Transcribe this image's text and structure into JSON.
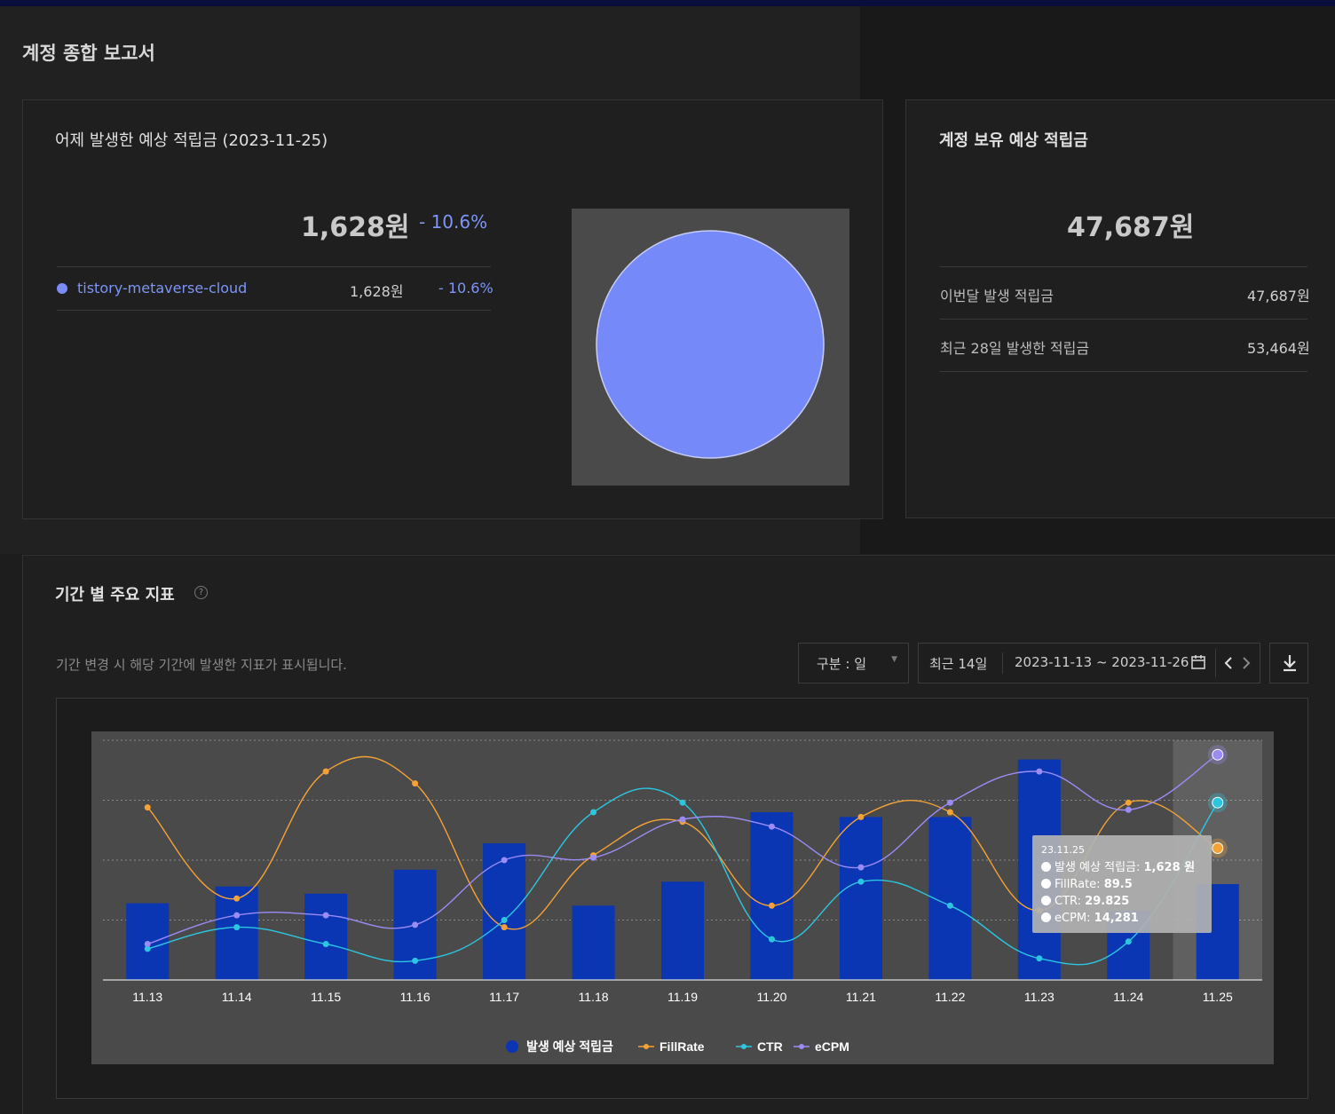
{
  "page": {
    "title": "계정 종합 보고서"
  },
  "yesterday_card": {
    "title": "어제 발생한 예상 적립금 (2023-11-25)",
    "amount": "1,628원",
    "delta": "- 10.6%",
    "rows": [
      {
        "name": "tistory-metaverse-cloud",
        "amount": "1,628원",
        "delta": "- 10.6%",
        "color": "#7b8cf8"
      }
    ],
    "pie": {
      "color": "#7b8cf8",
      "values": [
        100
      ]
    }
  },
  "balance_card": {
    "title": "계정 보유 예상 적립금",
    "amount": "47,687원",
    "rows": [
      {
        "label": "이번달 발생 적립금",
        "value": "47,687원"
      },
      {
        "label": "최근 28일 발생한 적립금",
        "value": "53,464원"
      }
    ]
  },
  "metrics_card": {
    "title": "기간 별 주요 지표",
    "help_icon": "question-circle-icon",
    "description": "기간 변경 시 해당 기간에 발생한 지표가 표시됩니다.",
    "granularity": {
      "label": "구분 : 일"
    },
    "period": {
      "preset": "최근 14일",
      "range": "2023-11-13 ~ 2023-11-26"
    },
    "tooltip": {
      "date": "23.11.25",
      "rows": [
        {
          "name": "발생 예상 적립금: ",
          "value": "1,628 원"
        },
        {
          "name": "FillRate: ",
          "value": "89.5"
        },
        {
          "name": "CTR: ",
          "value": "29.825"
        },
        {
          "name": "eCPM: ",
          "value": "14,281"
        }
      ]
    }
  },
  "chart_data": {
    "type": "bar",
    "categories": [
      "11.13",
      "11.14",
      "11.15",
      "11.16",
      "11.17",
      "11.18",
      "11.19",
      "11.20",
      "11.21",
      "11.22",
      "11.23",
      "11.24",
      "11.25"
    ],
    "series": [
      {
        "name": "발생 예상 적립금",
        "type": "bar",
        "color": "#0a35b3",
        "values": [
          0.32,
          0.39,
          0.36,
          0.46,
          0.57,
          0.31,
          0.41,
          0.7,
          0.68,
          0.68,
          0.92,
          0.29,
          0.4
        ]
      },
      {
        "name": "FillRate",
        "type": "line",
        "color": "#f4a236",
        "values": [
          0.72,
          0.34,
          0.87,
          0.82,
          0.22,
          0.52,
          0.66,
          0.31,
          0.68,
          0.7,
          0.29,
          0.74,
          0.55
        ]
      },
      {
        "name": "CTR",
        "type": "line",
        "color": "#2cc6e0",
        "values": [
          0.13,
          0.22,
          0.15,
          0.08,
          0.25,
          0.7,
          0.74,
          0.17,
          0.41,
          0.31,
          0.09,
          0.16,
          0.74
        ]
      },
      {
        "name": "eCPM",
        "type": "line",
        "color": "#9b8cf5",
        "values": [
          0.15,
          0.27,
          0.27,
          0.23,
          0.5,
          0.51,
          0.67,
          0.64,
          0.47,
          0.74,
          0.87,
          0.71,
          0.94
        ]
      }
    ],
    "highlight_index": 12,
    "legend_placement": "bottom-center",
    "grid": true
  }
}
